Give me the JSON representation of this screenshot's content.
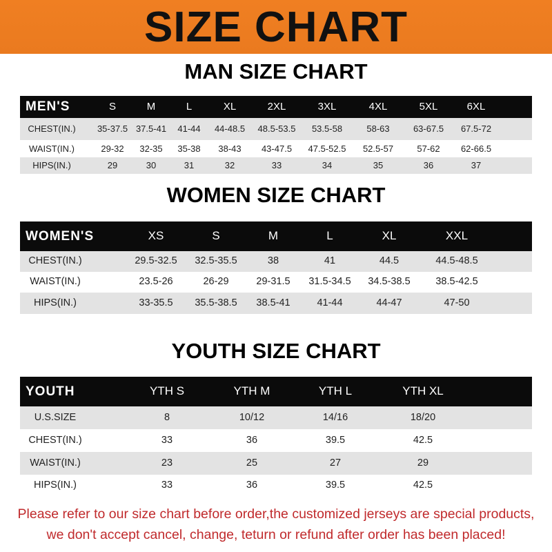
{
  "banner_title": "SIZE CHART",
  "men": {
    "title": "MAN SIZE CHART",
    "corner": "MEN'S",
    "sizes": [
      "S",
      "M",
      "L",
      "XL",
      "2XL",
      "3XL",
      "4XL",
      "5XL",
      "6XL"
    ],
    "rows": [
      {
        "label": "CHEST(IN.)",
        "values": [
          "35-37.5",
          "37.5-41",
          "41-44",
          "44-48.5",
          "48.5-53.5",
          "53.5-58",
          "58-63",
          "63-67.5",
          "67.5-72"
        ]
      },
      {
        "label": "WAIST(IN.)",
        "values": [
          "29-32",
          "32-35",
          "35-38",
          "38-43",
          "43-47.5",
          "47.5-52.5",
          "52.5-57",
          "57-62",
          "62-66.5"
        ]
      },
      {
        "label": "HIPS(IN.)",
        "values": [
          "29",
          "30",
          "31",
          "32",
          "33",
          "34",
          "35",
          "36",
          "37"
        ]
      }
    ]
  },
  "women": {
    "title": "WOMEN SIZE CHART",
    "corner": "WOMEN'S",
    "sizes": [
      "XS",
      "S",
      "M",
      "L",
      "XL",
      "XXL"
    ],
    "rows": [
      {
        "label": "CHEST(IN.)",
        "values": [
          "29.5-32.5",
          "32.5-35.5",
          "38",
          "41",
          "44.5",
          "44.5-48.5"
        ]
      },
      {
        "label": "WAIST(IN.)",
        "values": [
          "23.5-26",
          "26-29",
          "29-31.5",
          "31.5-34.5",
          "34.5-38.5",
          "38.5-42.5"
        ]
      },
      {
        "label": "HIPS(IN.)",
        "values": [
          "33-35.5",
          "35.5-38.5",
          "38.5-41",
          "41-44",
          "44-47",
          "47-50"
        ]
      }
    ]
  },
  "youth": {
    "title": "YOUTH SIZE CHART",
    "corner": "YOUTH",
    "sizes": [
      "YTH S",
      "YTH M",
      "YTH L",
      "YTH XL"
    ],
    "rows": [
      {
        "label": "U.S.SIZE",
        "values": [
          "8",
          "10/12",
          "14/16",
          "18/20"
        ]
      },
      {
        "label": "CHEST(IN.)",
        "values": [
          "33",
          "36",
          "39.5",
          "42.5"
        ]
      },
      {
        "label": "WAIST(IN.)",
        "values": [
          "23",
          "25",
          "27",
          "29"
        ]
      },
      {
        "label": "HIPS(IN.)",
        "values": [
          "33",
          "36",
          "39.5",
          "42.5"
        ]
      }
    ]
  },
  "notice": [
    "Please refer to our size chart before order,the customized jerseys are special products,",
    "we don't accept cancel, change, teturn or refund after order has been placed!"
  ],
  "colors": {
    "banner": "#ee7d21",
    "header": "#0b0b0b",
    "stripe": "#e3e3e3",
    "notice": "#c02a2c"
  }
}
